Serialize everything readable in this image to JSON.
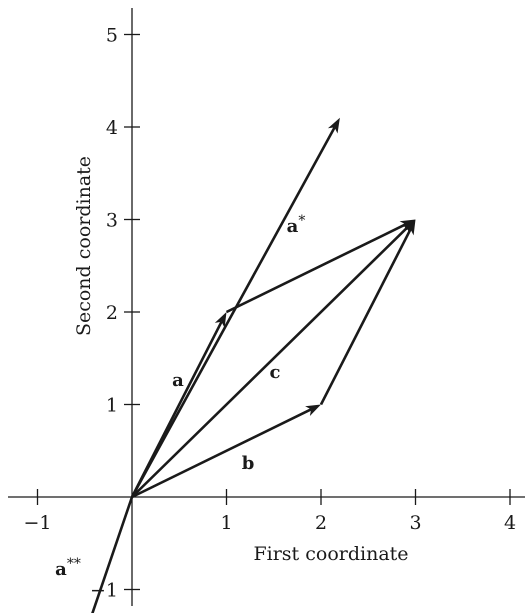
{
  "axes": {
    "x_title": "First coordinate",
    "y_title": "Second coordinate",
    "x_ticks": [
      {
        "value": -1,
        "label": "−1"
      },
      {
        "value": 1,
        "label": "1"
      },
      {
        "value": 2,
        "label": "2"
      },
      {
        "value": 3,
        "label": "3"
      },
      {
        "value": 4,
        "label": "4"
      }
    ],
    "y_ticks": [
      {
        "value": -1,
        "label": "−1"
      },
      {
        "value": 1,
        "label": "1"
      },
      {
        "value": 2,
        "label": "2"
      },
      {
        "value": 3,
        "label": "3"
      },
      {
        "value": 4,
        "label": "4"
      },
      {
        "value": 5,
        "label": "5"
      }
    ]
  },
  "vectors": [
    {
      "id": "a",
      "label": "a",
      "sup": "",
      "from": [
        0,
        0
      ],
      "to": [
        1,
        2
      ]
    },
    {
      "id": "b",
      "label": "b",
      "sup": "",
      "from": [
        0,
        0
      ],
      "to": [
        2,
        1
      ]
    },
    {
      "id": "c",
      "label": "c",
      "sup": "",
      "from": [
        0,
        0
      ],
      "to": [
        3,
        3
      ]
    },
    {
      "id": "a-star",
      "label": "a",
      "sup": "*",
      "from": [
        0,
        0
      ],
      "to": [
        2.2,
        4.1
      ]
    },
    {
      "id": "a-double-star",
      "label": "a",
      "sup": "**",
      "from": [
        0,
        0
      ],
      "to": [
        -0.5,
        -1.5
      ]
    },
    {
      "id": "a-from-b",
      "label": "",
      "sup": "",
      "from": [
        2,
        1
      ],
      "to": [
        3,
        3
      ]
    },
    {
      "id": "b-from-a",
      "label": "",
      "sup": "",
      "from": [
        1,
        2
      ],
      "to": [
        3,
        3
      ]
    }
  ]
}
